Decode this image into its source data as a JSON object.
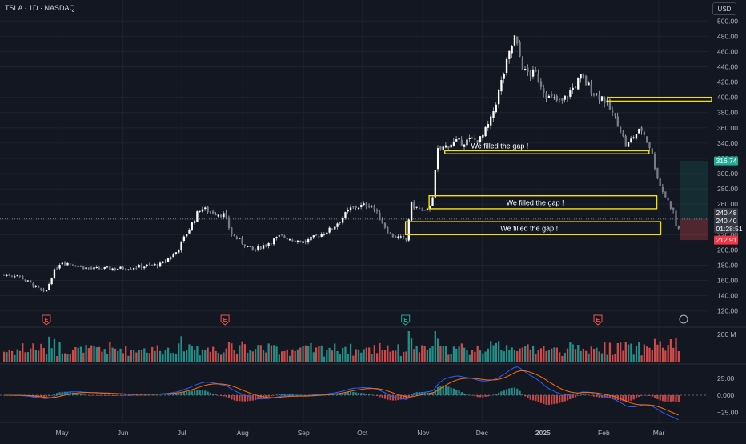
{
  "header": {
    "symbol_line": "TSLA · 1D · NASDAQ"
  },
  "currency_button": "USD",
  "colors": {
    "up": "#26a69a",
    "down": "#ef5350",
    "candle_up": "#ffffff",
    "candle_down": "#787b86",
    "macd_line": "#2962ff",
    "signal_line": "#ff6d00",
    "gap_box": "#f5e20a"
  },
  "chart_data": {
    "type": "candlestick",
    "title": "TSLA · 1D · NASDAQ",
    "price_axis": {
      "range": [
        105,
        515
      ],
      "ticks": [
        "500.00",
        "480.00",
        "460.00",
        "440.00",
        "420.00",
        "400.00",
        "380.00",
        "360.00",
        "340.00",
        "320.00",
        "300.00",
        "280.00",
        "260.00",
        "240.00",
        "220.00",
        "200.00",
        "180.00",
        "160.00",
        "140.00",
        "120.00"
      ]
    },
    "x_axis": {
      "labels": [
        "May",
        "Jun",
        "Jul",
        "Aug",
        "Sep",
        "Oct",
        "Nov",
        "Dec",
        "2025",
        "Feb",
        "Mar"
      ]
    },
    "key_points": [
      {
        "date": "Apr 08",
        "close": 167
      },
      {
        "date": "Apr 22",
        "close": 143
      },
      {
        "date": "Apr 26",
        "close": 170
      },
      {
        "date": "Apr 30",
        "close": 185
      },
      {
        "date": "May 15",
        "close": 175
      },
      {
        "date": "Jun 01",
        "close": 176
      },
      {
        "date": "Jun 20",
        "close": 181
      },
      {
        "date": "Jun 28",
        "close": 198
      },
      {
        "date": "Jul 10",
        "close": 255
      },
      {
        "date": "Jul 15",
        "close": 250
      },
      {
        "date": "Jul 22",
        "close": 246
      },
      {
        "date": "Jul 26",
        "close": 220
      },
      {
        "date": "Aug 06",
        "close": 199
      },
      {
        "date": "Aug 20",
        "close": 218
      },
      {
        "date": "Sep 01",
        "close": 210
      },
      {
        "date": "Sep 15",
        "close": 228
      },
      {
        "date": "Sep 25",
        "close": 255
      },
      {
        "date": "Oct 05",
        "close": 260
      },
      {
        "date": "Oct 10",
        "close": 239
      },
      {
        "date": "Oct 15",
        "close": 219
      },
      {
        "date": "Oct 23",
        "close": 213
      },
      {
        "date": "Oct 25",
        "close": 260
      },
      {
        "date": "Nov 02",
        "close": 248
      },
      {
        "date": "Nov 05",
        "close": 265
      },
      {
        "date": "Nov 08",
        "close": 330
      },
      {
        "date": "Nov 15",
        "close": 340
      },
      {
        "date": "Nov 30",
        "close": 345
      },
      {
        "date": "Dec 05",
        "close": 370
      },
      {
        "date": "Dec 12",
        "close": 435
      },
      {
        "date": "Dec 17",
        "close": 479
      },
      {
        "date": "Dec 22",
        "close": 433
      },
      {
        "date": "Dec 28",
        "close": 430
      },
      {
        "date": "Jan 03",
        "close": 400
      },
      {
        "date": "Jan 10",
        "close": 393
      },
      {
        "date": "Jan 20",
        "close": 426
      },
      {
        "date": "Jan 27",
        "close": 405
      },
      {
        "date": "Jan 31",
        "close": 400
      },
      {
        "date": "Feb 08",
        "close": 365
      },
      {
        "date": "Feb 12",
        "close": 335
      },
      {
        "date": "Feb 16",
        "close": 350
      },
      {
        "date": "Feb 20",
        "close": 358
      },
      {
        "date": "Feb 24",
        "close": 335
      },
      {
        "date": "Mar 01",
        "close": 285
      },
      {
        "date": "Mar 05",
        "close": 265
      },
      {
        "date": "Mar 08",
        "close": 250
      },
      {
        "date": "Mar 10",
        "close": 222
      },
      {
        "date": "Mar 12",
        "close": 240
      }
    ],
    "price_labels": [
      {
        "text": "316.74",
        "color": "#22ab94"
      },
      {
        "text": "240.48",
        "color": "#d1d4dc"
      },
      {
        "text": "240.40",
        "color": "#d1d4dc"
      },
      {
        "text": "01:28:51",
        "color": "#d1d4dc"
      },
      {
        "text": "212.91",
        "color": "#f23645"
      }
    ],
    "annotations": [
      {
        "label": "We filled the gap !",
        "y_top": 330,
        "y_bottom": 326
      },
      {
        "label": "We filled the gap !",
        "y_top": 271,
        "y_bottom": 254
      },
      {
        "label": "We filled the gap !",
        "y_top": 237,
        "y_bottom": 220
      },
      {
        "label": "",
        "y_top": 400,
        "y_bottom": 395
      }
    ],
    "earnings_markers": [
      "E",
      "E",
      "E",
      "E"
    ],
    "volume_axis": {
      "label": "200 M"
    },
    "macd_axis": {
      "ticks": [
        "25.00",
        "0.000",
        "−25.00"
      ]
    }
  }
}
